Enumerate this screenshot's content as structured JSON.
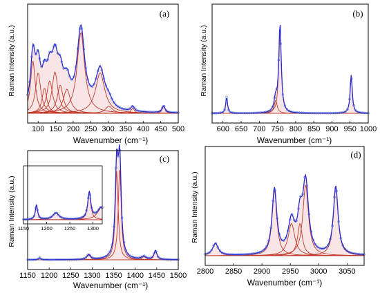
{
  "colors": {
    "raw_spectrum": "#2a2ad0",
    "fit_envelope": "#e6a0a0",
    "fit_components": "#c0392b",
    "markers": "#3a57c8"
  },
  "chart_data": [
    {
      "panel": "(a)",
      "type": "line",
      "xlabel": "Wavenumber (cm⁻¹)",
      "ylabel": "Raman Intensity (a.u.)",
      "xlim": [
        70,
        500
      ],
      "ylim": [
        0,
        1.0
      ],
      "xticks": [
        "100",
        "150",
        "200",
        "250",
        "300",
        "350",
        "400",
        "450",
        "500"
      ],
      "peaks": [
        {
          "center": 85,
          "width": 8,
          "height": 0.52
        },
        {
          "center": 100,
          "width": 9,
          "height": 0.4
        },
        {
          "center": 118,
          "width": 8,
          "height": 0.25
        },
        {
          "center": 133,
          "width": 10,
          "height": 0.32
        },
        {
          "center": 148,
          "width": 10,
          "height": 0.41
        },
        {
          "center": 163,
          "width": 10,
          "height": 0.28
        },
        {
          "center": 182,
          "width": 12,
          "height": 0.24
        },
        {
          "center": 222,
          "width": 13,
          "height": 0.8
        },
        {
          "center": 277,
          "width": 16,
          "height": 0.4
        },
        {
          "center": 302,
          "width": 12,
          "height": 0.07
        },
        {
          "center": 370,
          "width": 6,
          "height": 0.05
        },
        {
          "center": 458,
          "width": 5,
          "height": 0.07
        }
      ]
    },
    {
      "panel": "(b)",
      "type": "line",
      "xlabel": "Wavenumber (cm⁻¹)",
      "ylabel": "Raman Intensity (a.u.)",
      "xlim": [
        570,
        1000
      ],
      "ylim": [
        0,
        1.0
      ],
      "xticks": [
        "600",
        "650",
        "700",
        "750",
        "800",
        "850",
        "900",
        "950",
        "1000"
      ],
      "peaks": [
        {
          "center": 610,
          "width": 3,
          "height": 0.16
        },
        {
          "center": 745,
          "width": 5,
          "height": 0.13
        },
        {
          "center": 757,
          "width": 4,
          "height": 0.88
        },
        {
          "center": 953,
          "width": 3.5,
          "height": 0.38
        }
      ]
    },
    {
      "panel": "(c)",
      "type": "line",
      "xlabel": "Wavenumber (cm⁻¹)",
      "ylabel": "Raman Intensity (a.u.)",
      "xlim": [
        1150,
        1500
      ],
      "ylim": [
        0,
        1.0
      ],
      "xticks": [
        "1150",
        "1200",
        "1250",
        "1300",
        "1350",
        "1400",
        "1450",
        "1500"
      ],
      "peaks": [
        {
          "center": 1178,
          "width": 3,
          "height": 0.02
        },
        {
          "center": 1292,
          "width": 5,
          "height": 0.05
        },
        {
          "center": 1357,
          "width": 4,
          "height": 0.88
        },
        {
          "center": 1364,
          "width": 4,
          "height": 0.92
        },
        {
          "center": 1420,
          "width": 6,
          "height": 0.03
        },
        {
          "center": 1447,
          "width": 4,
          "height": 0.09
        }
      ],
      "inset": {
        "xlim": [
          1150,
          1320
        ],
        "xticks": [
          "1150",
          "1200",
          "1250",
          "1300"
        ],
        "peaks": [
          {
            "center": 1178,
            "width": 3,
            "height": 0.3
          },
          {
            "center": 1220,
            "width": 8,
            "height": 0.14
          },
          {
            "center": 1292,
            "width": 4,
            "height": 0.55
          },
          {
            "center": 1318,
            "width": 10,
            "height": 0.25
          }
        ]
      }
    },
    {
      "panel": "(d)",
      "type": "line",
      "xlabel": "Wavenumber (cm⁻¹)",
      "ylabel": "Raman Intensity (a.u.)",
      "xlim": [
        2800,
        3080
      ],
      "ylim": [
        0,
        1.0
      ],
      "xticks": [
        "2800",
        "2850",
        "2900",
        "2950",
        "3000",
        "3050"
      ],
      "peaks": [
        {
          "center": 2818,
          "width": 6,
          "height": 0.12
        },
        {
          "center": 2922,
          "width": 5,
          "height": 0.65
        },
        {
          "center": 2952,
          "width": 7,
          "height": 0.32
        },
        {
          "center": 2967,
          "width": 5,
          "height": 0.32
        },
        {
          "center": 2977,
          "width": 6,
          "height": 0.7
        },
        {
          "center": 3030,
          "width": 5,
          "height": 0.68
        }
      ]
    }
  ]
}
